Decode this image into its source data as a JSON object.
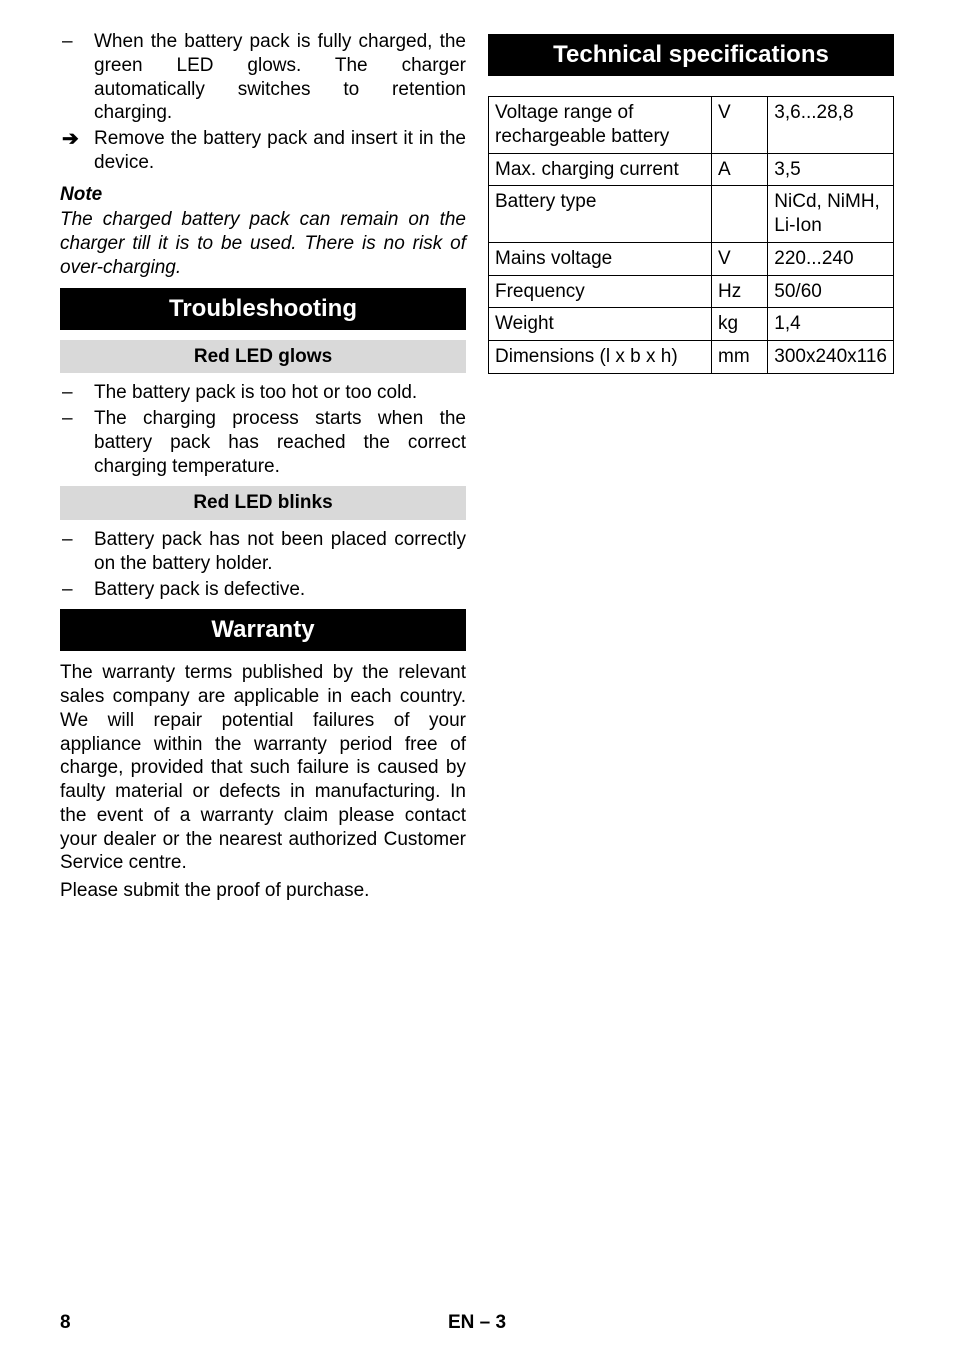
{
  "left": {
    "items1": [
      {
        "mark": "–",
        "text": "When the battery pack is fully charged, the green LED glows. The charger automatically switches to retention charging."
      },
      {
        "mark": "arrow",
        "text": "Remove the battery pack and insert it in the device."
      }
    ],
    "note_head": "Note",
    "note_body": "The charged battery pack can remain on the charger till it is to be used.  There is no risk of over-charging.",
    "h_troubleshooting": "Troubleshooting",
    "h_red_glows": "Red LED glows",
    "items_red_glows": [
      {
        "mark": "–",
        "text": "The battery pack is too hot or too cold."
      },
      {
        "mark": "–",
        "text": "The charging process starts when the battery pack has reached the correct charging temperature."
      }
    ],
    "h_red_blinks": "Red LED blinks",
    "items_red_blinks": [
      {
        "mark": "–",
        "text": "Battery pack has not been placed correctly on the battery holder."
      },
      {
        "mark": "–",
        "text": "Battery pack is defective."
      }
    ],
    "h_warranty": "Warranty",
    "warranty_p1": "The warranty terms published by the relevant sales company are applicable in each country. We will repair potential failures of your appliance within the warranty period free of charge, provided that such failure is caused by faulty material or defects in manufacturing. In the event of a warranty claim please contact your dealer or the nearest authorized Customer Service centre.",
    "warranty_p2": "Please submit the proof of purchase."
  },
  "right": {
    "h_tech": "Technical specifications",
    "rows": [
      {
        "label": "Voltage range of rechargeable battery",
        "unit": "V",
        "value": "3,6...28,8"
      },
      {
        "label": "Max. charging current",
        "unit": "A",
        "value": "3,5"
      },
      {
        "label": "Battery type",
        "unit": "",
        "value": "NiCd, NiMH, Li-Ion"
      },
      {
        "label": "Mains voltage",
        "unit": "V",
        "value": "220...240"
      },
      {
        "label": "Frequency",
        "unit": "Hz",
        "value": "50/60"
      },
      {
        "label": "Weight",
        "unit": "kg",
        "value": "1,4"
      },
      {
        "label": "Dimensions (l x b x h)",
        "unit": "mm",
        "value": "300x240x116"
      }
    ]
  },
  "footer": {
    "page_left": "8",
    "lang": "EN",
    "sep": "–",
    "section": "3"
  }
}
